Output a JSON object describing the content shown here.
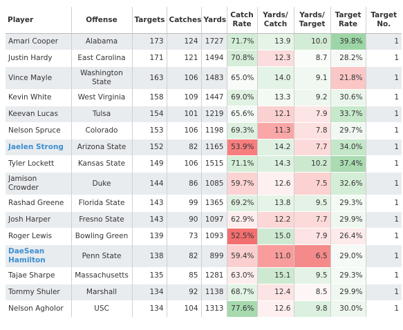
{
  "headers": {
    "player": "Player",
    "offense": "Offense",
    "targets": "Targets",
    "catches": "Catches",
    "yards": "Yards",
    "catch_rate": "Catch Rate",
    "yards_catch": "Yards/ Catch",
    "yards_target": "Yards/ Target",
    "target_rate": "Target Rate",
    "target_no": "Target No."
  },
  "colors": {
    "row_shade": "#e9ecef",
    "highlight_name": "#3d8fd1"
  },
  "rows": [
    {
      "player": "Amari Cooper",
      "offense": "Alabama",
      "targets": "173",
      "catches": "124",
      "yards": "1727",
      "catch_rate": "71.7%",
      "yards_catch": "13.9",
      "yards_target": "10.0",
      "target_rate": "39.8%",
      "target_no": "1",
      "highlight": false,
      "bg": {
        "catch_rate": "#d3edd6",
        "yards_catch": "#e6f4e8",
        "yards_target": "#d3ecd6",
        "target_rate": "#9dd6a6"
      }
    },
    {
      "player": "Justin Hardy",
      "offense": "East Carolina",
      "targets": "171",
      "catches": "121",
      "yards": "1494",
      "catch_rate": "70.8%",
      "yards_catch": "12.3",
      "yards_target": "8.7",
      "target_rate": "28.2%",
      "target_no": "1",
      "highlight": false,
      "bg": {
        "catch_rate": "#d6eed9",
        "yards_catch": "#fcdcdc",
        "yards_target": "#fafcf9",
        "target_rate": "#f7f9f7"
      }
    },
    {
      "player": "Vince Mayle",
      "offense": "Washington State",
      "targets": "163",
      "catches": "106",
      "yards": "1483",
      "catch_rate": "65.0%",
      "yards_catch": "14.0",
      "yards_target": "9.1",
      "target_rate": "21.8%",
      "target_no": "1",
      "highlight": false,
      "bg": {
        "catch_rate": "#f8fbf8",
        "yards_catch": "#e3f3e5",
        "yards_target": "#f0f8f1",
        "target_rate": "#fbc6c6"
      }
    },
    {
      "player": "Kevin White",
      "offense": "West Virginia",
      "targets": "158",
      "catches": "109",
      "yards": "1447",
      "catch_rate": "69.0%",
      "yards_catch": "13.3",
      "yards_target": "9.2",
      "target_rate": "30.6%",
      "target_no": "1",
      "highlight": false,
      "bg": {
        "catch_rate": "#e0f2e2",
        "yards_catch": "#f3f9f3",
        "yards_target": "#eef7ef",
        "target_rate": "#eaf6eb"
      }
    },
    {
      "player": "Keevan Lucas",
      "offense": "Tulsa",
      "targets": "154",
      "catches": "101",
      "yards": "1219",
      "catch_rate": "65.6%",
      "yards_catch": "12.1",
      "yards_target": "7.9",
      "target_rate": "33.7%",
      "target_no": "1",
      "highlight": false,
      "bg": {
        "catch_rate": "#f4faf5",
        "yards_catch": "#fbd0d0",
        "yards_target": "#fde5e5",
        "target_rate": "#c6e8cb"
      }
    },
    {
      "player": "Nelson Spruce",
      "offense": "Colorado",
      "targets": "153",
      "catches": "106",
      "yards": "1198",
      "catch_rate": "69.3%",
      "yards_catch": "11.3",
      "yards_target": "7.8",
      "target_rate": "29.7%",
      "target_no": "1",
      "highlight": false,
      "bg": {
        "catch_rate": "#def1e0",
        "yards_catch": "#f9a7a7",
        "yards_target": "#fde0e0",
        "target_rate": "#f1f8f2"
      }
    },
    {
      "player": "Jaelen Strong",
      "offense": "Arizona State",
      "targets": "152",
      "catches": "82",
      "yards": "1165",
      "catch_rate": "53.9%",
      "yards_catch": "14.2",
      "yards_target": "7.7",
      "target_rate": "34.0%",
      "target_no": "1",
      "highlight": true,
      "bg": {
        "catch_rate": "#f67e7e",
        "yards_catch": "#dff1e2",
        "yards_target": "#fcdada",
        "target_rate": "#c3e7c8"
      }
    },
    {
      "player": "Tyler Lockett",
      "offense": "Kansas State",
      "targets": "149",
      "catches": "106",
      "yards": "1515",
      "catch_rate": "71.1%",
      "yards_catch": "14.3",
      "yards_target": "10.2",
      "target_rate": "37.4%",
      "target_no": "1",
      "highlight": false,
      "bg": {
        "catch_rate": "#d5eed8",
        "yards_catch": "#dcf0df",
        "yards_target": "#cce9d0",
        "target_rate": "#aadbb1"
      }
    },
    {
      "player": "Jamison Crowder",
      "offense": "Duke",
      "targets": "144",
      "catches": "86",
      "yards": "1085",
      "catch_rate": "59.7%",
      "yards_catch": "12.6",
      "yards_target": "7.5",
      "target_rate": "32.6%",
      "target_no": "1",
      "highlight": false,
      "bg": {
        "catch_rate": "#fbd3d3",
        "yards_catch": "#fef0f0",
        "yards_target": "#fcd1d1",
        "target_rate": "#d4edd7"
      }
    },
    {
      "player": "Rashad Greene",
      "offense": "Florida State",
      "targets": "143",
      "catches": "99",
      "yards": "1365",
      "catch_rate": "69.2%",
      "yards_catch": "13.8",
      "yards_target": "9.5",
      "target_rate": "29.3%",
      "target_no": "1",
      "highlight": false,
      "bg": {
        "catch_rate": "#dff1e1",
        "yards_catch": "#e6f4e8",
        "yards_target": "#e4f3e6",
        "target_rate": "#f4faf4"
      }
    },
    {
      "player": "Josh Harper",
      "offense": "Fresno State",
      "targets": "143",
      "catches": "90",
      "yards": "1097",
      "catch_rate": "62.9%",
      "yards_catch": "12.2",
      "yards_target": "7.7",
      "target_rate": "29.9%",
      "target_no": "1",
      "highlight": false,
      "bg": {
        "catch_rate": "#fdeded",
        "yards_catch": "#fbd7d7",
        "yards_target": "#fcdada",
        "target_rate": "#eff8f0"
      }
    },
    {
      "player": "Roger Lewis",
      "offense": "Bowling Green",
      "targets": "139",
      "catches": "73",
      "yards": "1093",
      "catch_rate": "52.5%",
      "yards_catch": "15.0",
      "yards_target": "7.9",
      "target_rate": "26.4%",
      "target_no": "1",
      "highlight": false,
      "bg": {
        "catch_rate": "#f46f6f",
        "yards_catch": "#cfead3",
        "yards_target": "#fde3e3",
        "target_rate": "#fdeaea"
      }
    },
    {
      "player": "DaeSean Hamilton",
      "offense": "Penn State",
      "targets": "138",
      "catches": "82",
      "yards": "899",
      "catch_rate": "59.4%",
      "yards_catch": "11.0",
      "yards_target": "6.5",
      "target_rate": "29.0%",
      "target_no": "1",
      "highlight": true,
      "bg": {
        "catch_rate": "#fbcfcf",
        "yards_catch": "#f99c9c",
        "yards_target": "#f48a8a",
        "target_rate": "#f6faf6"
      }
    },
    {
      "player": "Tajae Sharpe",
      "offense": "Massachusetts",
      "targets": "135",
      "catches": "85",
      "yards": "1281",
      "catch_rate": "63.0%",
      "yards_catch": "15.1",
      "yards_target": "9.5",
      "target_rate": "29.3%",
      "target_no": "1",
      "highlight": false,
      "bg": {
        "catch_rate": "#fdeeee",
        "yards_catch": "#cdead1",
        "yards_target": "#e4f3e6",
        "target_rate": "#f4faf4"
      }
    },
    {
      "player": "Tommy Shuler",
      "offense": "Marshall",
      "targets": "134",
      "catches": "92",
      "yards": "1138",
      "catch_rate": "68.7%",
      "yards_catch": "12.4",
      "yards_target": "8.5",
      "target_rate": "29.9%",
      "target_no": "1",
      "highlight": false,
      "bg": {
        "catch_rate": "#e2f3e4",
        "yards_catch": "#fce4e4",
        "yards_target": "#fef6f6",
        "target_rate": "#eff8f0"
      }
    },
    {
      "player": "Nelson Agholor",
      "offense": "USC",
      "targets": "134",
      "catches": "104",
      "yards": "1313",
      "catch_rate": "77.6%",
      "yards_catch": "12.6",
      "yards_target": "9.8",
      "target_rate": "30.0%",
      "target_no": "1",
      "highlight": false,
      "bg": {
        "catch_rate": "#a7daae",
        "yards_catch": "#fef0f0",
        "yards_target": "#dbf0de",
        "target_rate": "#eef7ef"
      }
    }
  ]
}
